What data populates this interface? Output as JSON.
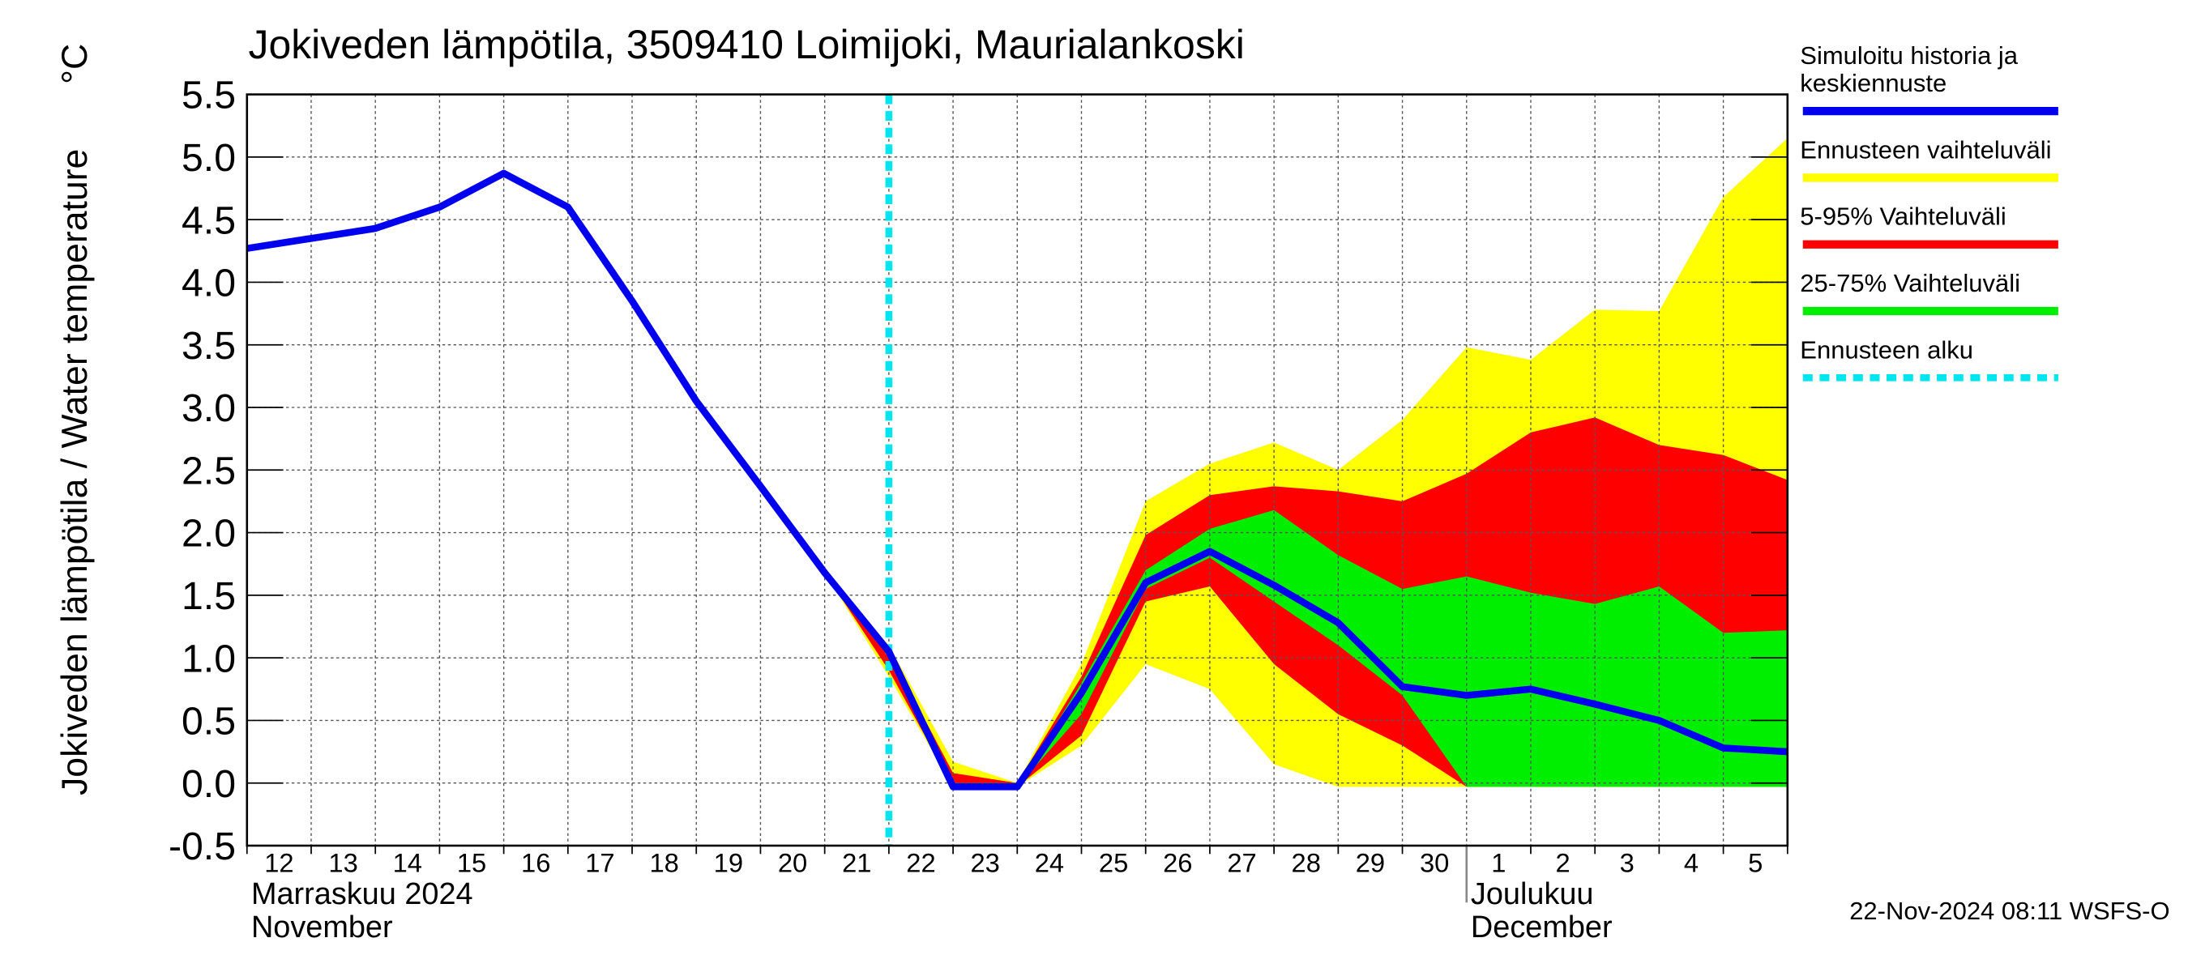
{
  "chart_data": {
    "type": "line",
    "title": "Jokiveden lämpötila, 3509410 Loimijoki, Maurialankoski",
    "y_label": "Jokiveden lämpötila / Water temperature",
    "y_unit": "°C",
    "month_labels": [
      {
        "category": "12",
        "lines": [
          "Marraskuu 2024",
          "November"
        ]
      },
      {
        "category": "1",
        "lines": [
          "Joulukuu",
          "December"
        ]
      }
    ],
    "footer": "22-Nov-2024 08:11 WSFS-O",
    "categories": [
      "12",
      "13",
      "14",
      "15",
      "16",
      "17",
      "18",
      "19",
      "20",
      "21",
      "22",
      "23",
      "24",
      "25",
      "26",
      "27",
      "28",
      "29",
      "30",
      "1",
      "2",
      "3",
      "4",
      "5",
      null
    ],
    "ylim": [
      -0.5,
      5.5
    ],
    "yticks": [
      -0.5,
      {
        "value": 0,
        "label": "0.0"
      },
      0.5,
      {
        "value": 1,
        "label": "1.0"
      },
      1.5,
      {
        "value": 2,
        "label": "2.0"
      },
      2.5,
      {
        "value": 3,
        "label": "3.0"
      },
      3.5,
      {
        "value": 4,
        "label": "4.0"
      },
      4.5,
      {
        "value": 5,
        "label": "5.0"
      },
      5.5
    ],
    "grid": true,
    "series": [
      {
        "name": "Simuloitu historia ja keskiennuste",
        "color": "#0000ee",
        "values": [
          4.27,
          4.35,
          4.43,
          4.6,
          4.87,
          4.6,
          3.85,
          3.05,
          2.37,
          1.68,
          1.05,
          -0.03,
          -0.03,
          0.72,
          1.6,
          1.85,
          1.58,
          1.28,
          0.77,
          0.7,
          0.75,
          0.63,
          0.5,
          0.28,
          0.25
        ]
      }
    ],
    "bands": [
      {
        "name": "Ennusteen vaihteluväli",
        "color": "#ffff00",
        "high": [
          null,
          null,
          null,
          null,
          null,
          null,
          null,
          null,
          null,
          1.68,
          1.1,
          0.17,
          0,
          0.95,
          2.25,
          2.55,
          2.72,
          2.5,
          2.9,
          3.48,
          3.38,
          3.78,
          3.77,
          4.68,
          5.15
        ],
        "low": [
          null,
          null,
          null,
          null,
          null,
          null,
          null,
          null,
          null,
          1.68,
          0.85,
          -0.03,
          -0.03,
          0.3,
          0.95,
          0.75,
          0.15,
          -0.03,
          -0.03,
          -0.03,
          -0.03,
          -0.03,
          -0.03,
          -0.03,
          -0.03
        ]
      },
      {
        "name": "5-95% Vaihteluväli",
        "color": "#ff0000",
        "high": [
          null,
          null,
          null,
          null,
          null,
          null,
          null,
          null,
          null,
          1.68,
          1.05,
          0.08,
          0,
          0.85,
          1.98,
          2.3,
          2.37,
          2.33,
          2.25,
          2.47,
          2.8,
          2.92,
          2.7,
          2.62,
          2.42
        ],
        "low": [
          null,
          null,
          null,
          null,
          null,
          null,
          null,
          null,
          null,
          1.68,
          0.9,
          -0.03,
          -0.03,
          0.38,
          1.45,
          1.57,
          0.95,
          0.55,
          0.3,
          -0.03,
          -0.03,
          -0.03,
          -0.03,
          -0.03,
          -0.03
        ]
      },
      {
        "name": "25-75% Vaihteluväli",
        "color": "#00ee00",
        "high": [
          null,
          null,
          null,
          null,
          null,
          null,
          null,
          null,
          null,
          null,
          1.05,
          0,
          -0.03,
          0.8,
          1.7,
          2.03,
          2.18,
          1.82,
          1.55,
          1.65,
          1.52,
          1.43,
          1.57,
          1.2,
          1.22
        ],
        "low": [
          null,
          null,
          null,
          null,
          null,
          null,
          null,
          null,
          null,
          null,
          1.0,
          -0.03,
          -0.03,
          0.55,
          1.55,
          1.8,
          1.45,
          1.1,
          0.7,
          -0.03,
          -0.03,
          -0.03,
          -0.03,
          -0.03,
          -0.03
        ]
      }
    ],
    "forecast_start": {
      "name": "Ennusteen alku",
      "color": "#00e5ee",
      "category": "22"
    }
  }
}
